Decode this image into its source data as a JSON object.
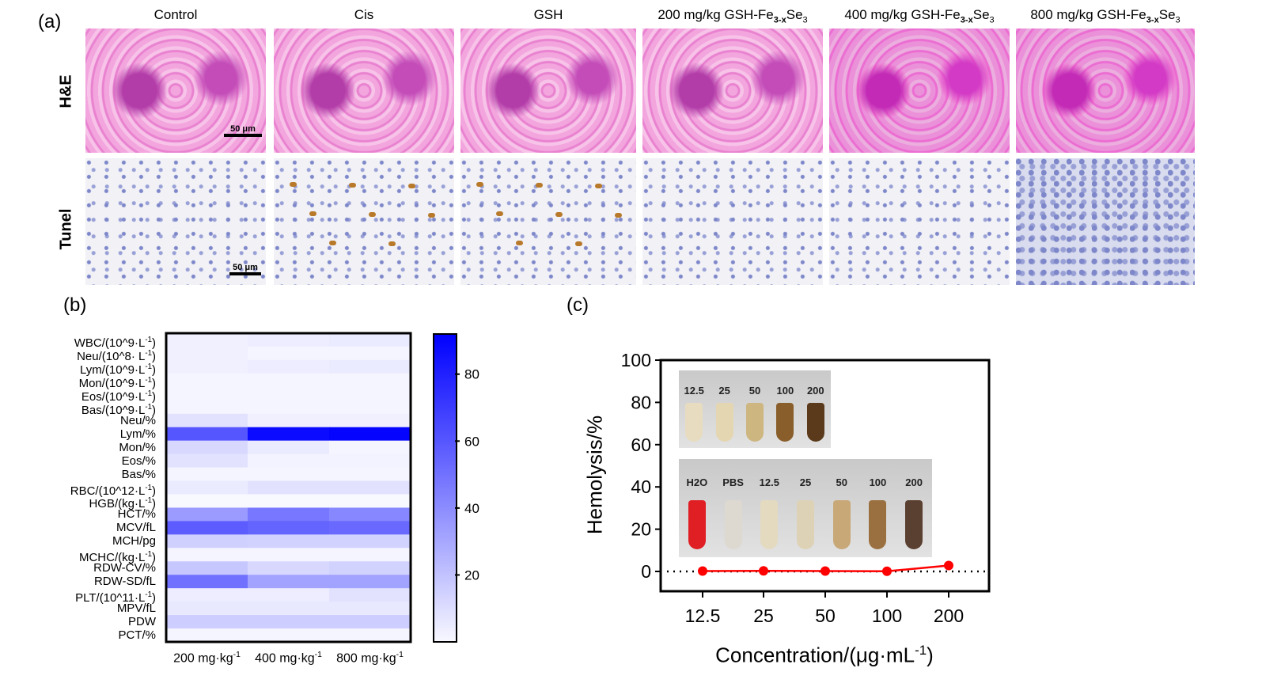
{
  "panel_a": {
    "label": "(a)",
    "columns": [
      "Control",
      "Cis",
      "GSH",
      "200 mg/kg GSH-Fe",
      "400 mg/kg GSH-Fe",
      "800 mg/kg GSH-Fe"
    ],
    "formula_sub": "3-x",
    "formula_tail": "Se",
    "formula_sub2": "3",
    "rows": [
      "H&E",
      "Tunel"
    ],
    "scale_bar": "50 μm"
  },
  "chart_data": [
    {
      "type": "heatmap",
      "panel_label": "(b)",
      "rows": [
        "WBC/(10^9·L",
        "Neu/(10^8· L",
        "Lym/(10^9·L",
        "Mon/(10^9·L",
        "Eos/(10^9·L",
        "Bas/(10^9·L",
        "Neu/%",
        "Lym/%",
        "Mon/%",
        "Eos/%",
        "Bas/%",
        "RBC/(10^12·L",
        "HGB/(kg·L",
        "HCT/%",
        "MCV/fL",
        "MCH/pg",
        "MCHC/(kg·L",
        "RDW-CV/%",
        "RDW-SD/fL",
        "PLT/(10^11·L",
        "MPV/fL",
        "PDW",
        "PCT/%"
      ],
      "row_superscripts": [
        "-1",
        "-1",
        "-1",
        "-1",
        "-1",
        "-1",
        "",
        "",
        "",
        "",
        "",
        "-1",
        "-1",
        "",
        "",
        "",
        "-1",
        "",
        "",
        "-1",
        "",
        "",
        ""
      ],
      "columns": [
        "200 mg·kg",
        "400 mg·kg",
        "800 mg·kg"
      ],
      "column_superscript": "-1",
      "values": [
        [
          3,
          4,
          5
        ],
        [
          3,
          1,
          1
        ],
        [
          3,
          4,
          5
        ],
        [
          1,
          1,
          1
        ],
        [
          1,
          1,
          1
        ],
        [
          1,
          1,
          1
        ],
        [
          8,
          3,
          3
        ],
        [
          60,
          88,
          90
        ],
        [
          12,
          5,
          1
        ],
        [
          8,
          2,
          2
        ],
        [
          1,
          1,
          1
        ],
        [
          5,
          8,
          8
        ],
        [
          0,
          0,
          0
        ],
        [
          35,
          48,
          42
        ],
        [
          58,
          55,
          53
        ],
        [
          15,
          14,
          14
        ],
        [
          1,
          1,
          1
        ],
        [
          18,
          12,
          14
        ],
        [
          50,
          32,
          32
        ],
        [
          4,
          4,
          8
        ],
        [
          6,
          6,
          6
        ],
        [
          16,
          16,
          16
        ],
        [
          1,
          1,
          1
        ]
      ],
      "colorbar": {
        "min": 0,
        "max": 92,
        "ticks": [
          20,
          40,
          60,
          80
        ],
        "low_color": "#f8f8ff",
        "high_color": "#0000ff"
      }
    },
    {
      "type": "line",
      "panel_label": "(c)",
      "x_categories": [
        "12.5",
        "25",
        "50",
        "100",
        "200"
      ],
      "values": [
        0.2,
        0.3,
        0.2,
        0.1,
        2.8
      ],
      "ylabel": "Hemolysis/%",
      "xlabel": "Concentration/(μg·mL",
      "xlabel_sup": "-1",
      "xlabel_end": ")",
      "ylim": [
        -9.5,
        100
      ],
      "yticks": [
        0,
        20,
        40,
        60,
        80,
        100
      ],
      "reference_line": 0,
      "series_color": "#ff0000",
      "inset_top_labels": [
        "12.5",
        "25",
        "50",
        "100",
        "200"
      ],
      "inset_bottom_labels": [
        "H2O",
        "PBS",
        "12.5",
        "25",
        "50",
        "100",
        "200"
      ]
    }
  ]
}
